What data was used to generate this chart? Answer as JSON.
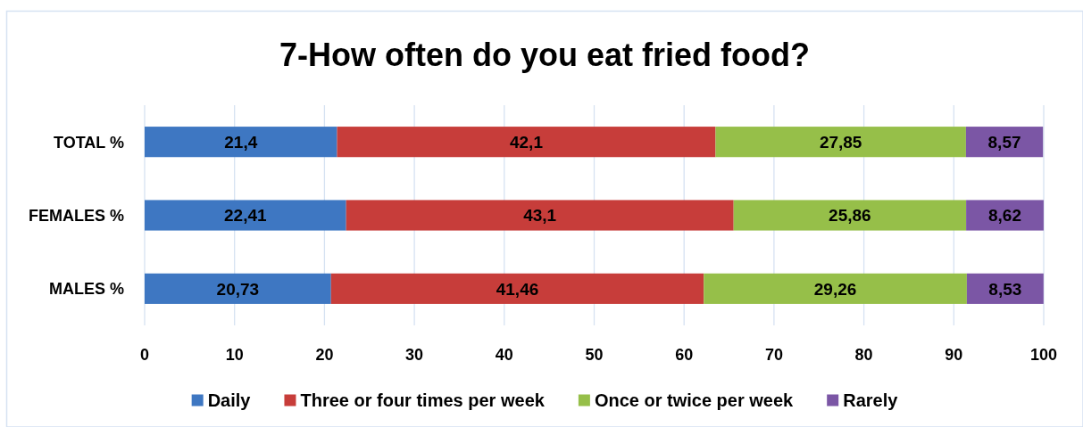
{
  "chart_data": {
    "type": "bar",
    "title": "7-How often do you eat fried food?",
    "orientation": "horizontal",
    "stacked": true,
    "categories": [
      "TOTAL %",
      "FEMALES %",
      "MALES %"
    ],
    "series": [
      {
        "name": "Daily",
        "color": "#3e77c2",
        "values": [
          21.4,
          22.41,
          20.73
        ],
        "value_labels": [
          "21,4",
          "22,41",
          "20,73"
        ]
      },
      {
        "name": "Three or four times per week",
        "color": "#c73d3a",
        "values": [
          42.1,
          43.1,
          41.46
        ],
        "value_labels": [
          "42,1",
          "43,1",
          "41,46"
        ]
      },
      {
        "name": "Once or twice per week",
        "color": "#96bf49",
        "values": [
          27.85,
          25.86,
          29.26
        ],
        "value_labels": [
          "27,85",
          "25,86",
          "29,26"
        ]
      },
      {
        "name": "Rarely",
        "color": "#7b56a5",
        "values": [
          8.57,
          8.62,
          8.53
        ],
        "value_labels": [
          "8,57",
          "8,62",
          "8,53"
        ]
      }
    ],
    "xlim": [
      0,
      100
    ],
    "xticks": [
      0,
      10,
      20,
      30,
      40,
      50,
      60,
      70,
      80,
      90,
      100
    ],
    "grid": "x",
    "legend": "bottom"
  }
}
